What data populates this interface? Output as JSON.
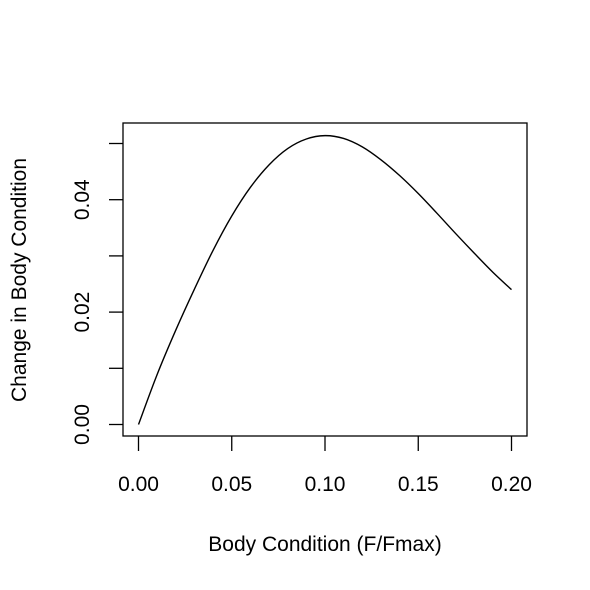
{
  "chart_data": {
    "type": "line",
    "title": "",
    "xlabel": "Body Condition (F/Fmax)",
    "ylabel": "Change in Body Condition",
    "xlim": [
      0.0,
      0.2
    ],
    "ylim": [
      -0.002,
      0.054
    ],
    "grid": false,
    "x_ticks": [
      "0.00",
      "0.05",
      "0.10",
      "0.15",
      "0.20"
    ],
    "y_ticks": [
      "0.00",
      "0.02",
      "0.04"
    ],
    "y_minor_ticks": [
      0.01,
      0.03,
      0.05
    ],
    "line_color": "#000000",
    "series": [
      {
        "x": [
          0.0,
          0.01,
          0.02,
          0.03,
          0.04,
          0.05,
          0.06,
          0.07,
          0.08,
          0.09,
          0.1,
          0.11,
          0.12,
          0.13,
          0.14,
          0.15,
          0.16,
          0.17,
          0.18,
          0.19,
          0.2
        ],
        "y": [
          0.0,
          0.0089,
          0.0168,
          0.0241,
          0.031,
          0.0371,
          0.0422,
          0.0462,
          0.0491,
          0.0508,
          0.0514,
          0.0509,
          0.0494,
          0.0471,
          0.0443,
          0.0411,
          0.0376,
          0.034,
          0.0305,
          0.0271,
          0.024
        ]
      }
    ]
  }
}
